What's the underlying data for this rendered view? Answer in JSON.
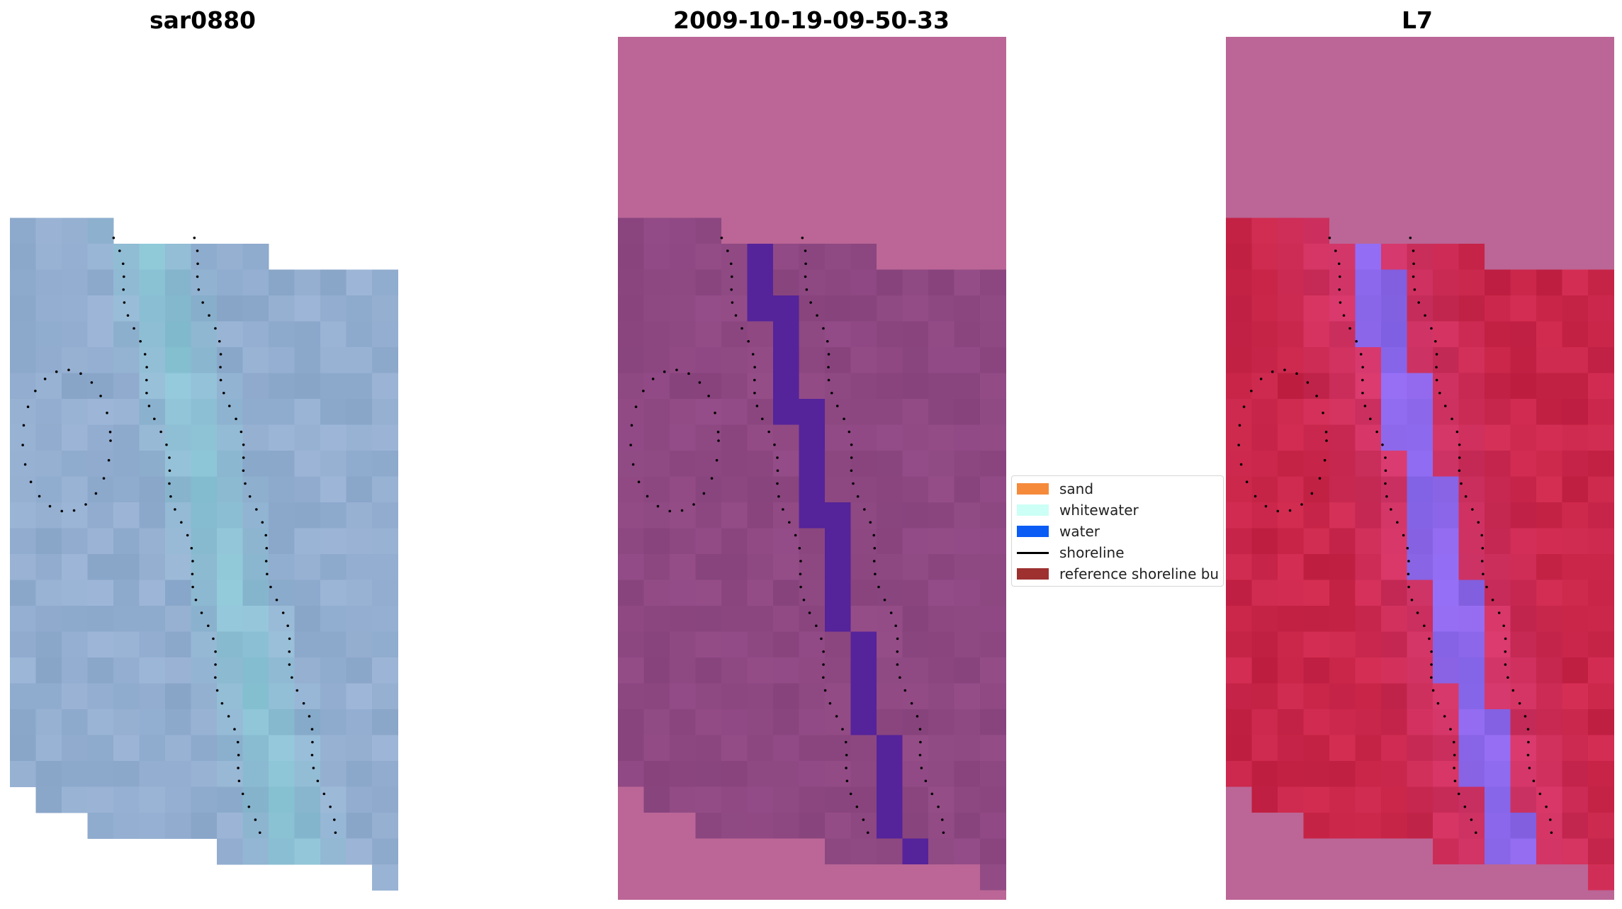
{
  "panels": [
    {
      "title": "sar0880",
      "style": "rgb"
    },
    {
      "title": "2009-10-19-09-50-33",
      "style": "classified"
    },
    {
      "title": "L7",
      "style": "index"
    }
  ],
  "legend": {
    "items": [
      {
        "label": "sand",
        "color": "#f58a3b",
        "kind": "patch"
      },
      {
        "label": "whitewater",
        "color": "#ccfff5",
        "kind": "patch"
      },
      {
        "label": "water",
        "color": "#0a5cf5",
        "kind": "patch"
      },
      {
        "label": "shoreline",
        "color": "#000000",
        "kind": "line"
      },
      {
        "label": "reference shoreline bu",
        "color": "#9e3030",
        "kind": "patch"
      }
    ]
  },
  "colors": {
    "nodata_overlay": "#bb6696",
    "rgb_base": "#93aed0",
    "class_land": "#8e4882",
    "class_water": "#55239a",
    "index_land": "#c9264a",
    "index_water": "#8b55c6"
  }
}
